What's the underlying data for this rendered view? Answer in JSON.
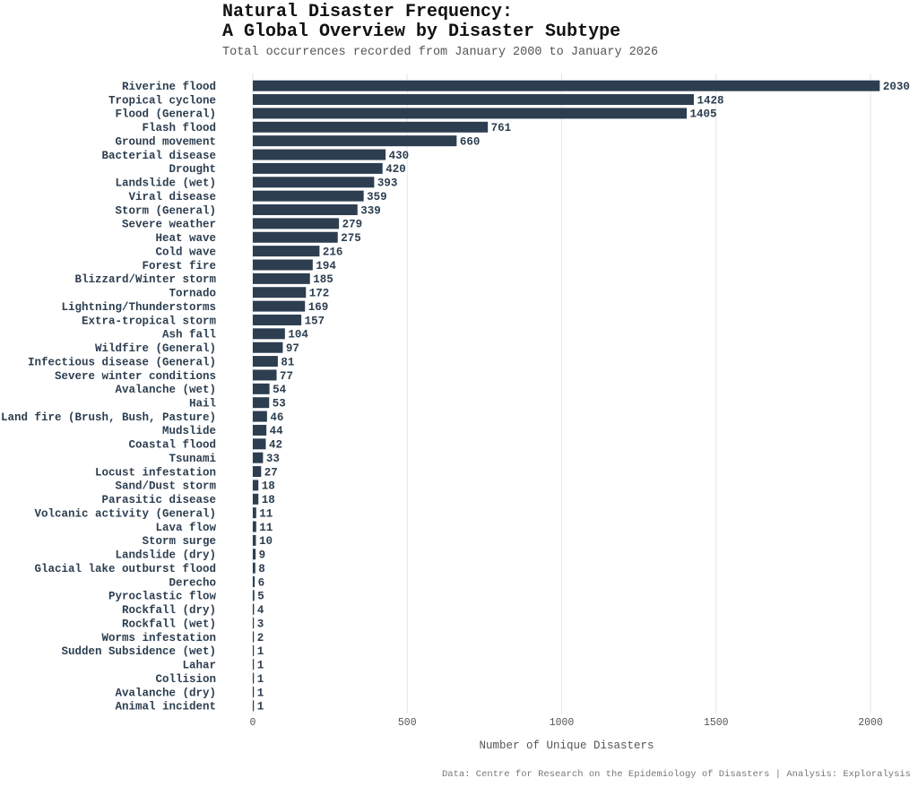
{
  "header": {
    "title_line1": "Natural Disaster Frequency:",
    "title_line2": "A Global Overview by Disaster Subtype",
    "subtitle": "Total occurrences recorded from January 2000 to January 2026"
  },
  "caption": "Data: Centre for Research on the Epidemiology of Disasters | Analysis: Exploralysis",
  "colors": {
    "bar": "#2c3e50",
    "grid": "#e6e6e6",
    "text": "#2c3e50"
  },
  "chart_data": {
    "type": "bar",
    "orientation": "horizontal",
    "title": "Natural Disaster Frequency: A Global Overview by Disaster Subtype",
    "subtitle": "Total occurrences recorded from January 2000 to January 2026",
    "xlabel": "Number of Unique Disasters",
    "ylabel": "",
    "xlim": [
      0,
      2030
    ],
    "xticks": [
      0,
      500,
      1000,
      1500,
      2000
    ],
    "grid": "vertical",
    "categories": [
      "Riverine flood",
      "Tropical cyclone",
      "Flood (General)",
      "Flash flood",
      "Ground movement",
      "Bacterial disease",
      "Drought",
      "Landslide (wet)",
      "Viral disease",
      "Storm (General)",
      "Severe weather",
      "Heat wave",
      "Cold wave",
      "Forest fire",
      "Blizzard/Winter storm",
      "Tornado",
      "Lightning/Thunderstorms",
      "Extra-tropical storm",
      "Ash fall",
      "Wildfire (General)",
      "Infectious disease (General)",
      "Severe winter conditions",
      "Avalanche (wet)",
      "Hail",
      "Land fire (Brush, Bush, Pasture)",
      "Mudslide",
      "Coastal flood",
      "Tsunami",
      "Locust infestation",
      "Sand/Dust storm",
      "Parasitic disease",
      "Volcanic activity (General)",
      "Lava flow",
      "Storm surge",
      "Landslide (dry)",
      "Glacial lake outburst flood",
      "Derecho",
      "Pyroclastic flow",
      "Rockfall (dry)",
      "Rockfall (wet)",
      "Worms infestation",
      "Sudden Subsidence (wet)",
      "Lahar",
      "Collision",
      "Avalanche (dry)",
      "Animal incident"
    ],
    "values": [
      2030,
      1428,
      1405,
      761,
      660,
      430,
      420,
      393,
      359,
      339,
      279,
      275,
      216,
      194,
      185,
      172,
      169,
      157,
      104,
      97,
      81,
      77,
      54,
      53,
      46,
      44,
      42,
      33,
      27,
      18,
      18,
      11,
      11,
      10,
      9,
      8,
      6,
      5,
      4,
      3,
      2,
      1,
      1,
      1,
      1,
      1
    ]
  }
}
